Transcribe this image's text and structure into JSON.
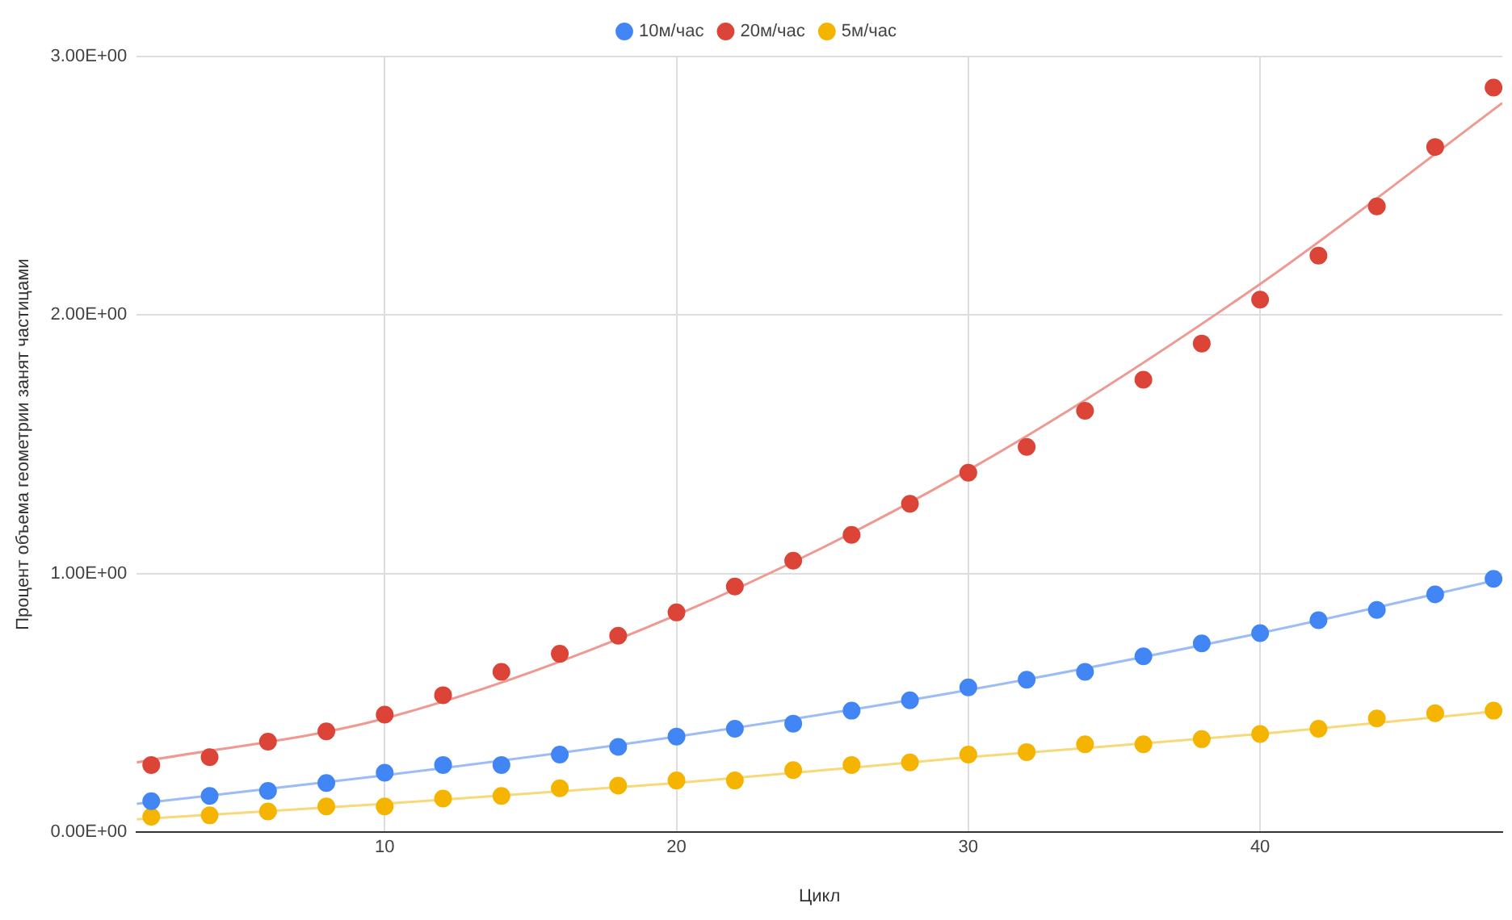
{
  "chart_data": {
    "type": "scatter",
    "xlabel": "Цикл",
    "ylabel": "Процент объема геометрии занят частицами",
    "x": [
      2,
      4,
      6,
      8,
      10,
      12,
      14,
      16,
      18,
      20,
      22,
      24,
      26,
      28,
      30,
      32,
      34,
      36,
      38,
      40,
      42,
      44,
      46,
      48
    ],
    "series": [
      {
        "name": "10м/час",
        "color": "#4285f4",
        "values": [
          0.12,
          0.14,
          0.16,
          0.19,
          0.23,
          0.26,
          0.26,
          0.3,
          0.33,
          0.37,
          0.4,
          0.42,
          0.47,
          0.51,
          0.56,
          0.59,
          0.62,
          0.68,
          0.73,
          0.77,
          0.82,
          0.86,
          0.92,
          0.98
        ]
      },
      {
        "name": "20м/час",
        "color": "#db4437",
        "values": [
          0.26,
          0.29,
          0.35,
          0.39,
          0.455,
          0.53,
          0.62,
          0.69,
          0.76,
          0.85,
          0.95,
          1.05,
          1.15,
          1.27,
          1.39,
          1.49,
          1.63,
          1.75,
          1.89,
          2.06,
          2.23,
          2.42,
          2.65,
          2.88
        ]
      },
      {
        "name": "5м/час",
        "color": "#f4b400",
        "values": [
          0.06,
          0.065,
          0.08,
          0.1,
          0.1,
          0.13,
          0.14,
          0.17,
          0.18,
          0.2,
          0.2,
          0.24,
          0.26,
          0.27,
          0.3,
          0.31,
          0.34,
          0.34,
          0.36,
          0.38,
          0.4,
          0.44,
          0.46,
          0.47
        ]
      },
      {
        "type": "line",
        "marker": "none",
        "color": "#9bbcf7",
        "x": [
          1.5,
          10,
          20,
          30,
          40,
          48.3
        ],
        "values": [
          0.11,
          0.22,
          0.37,
          0.55,
          0.77,
          0.98
        ]
      },
      {
        "type": "line",
        "marker": "none",
        "color": "#ee9a92",
        "x": [
          1.5,
          10,
          20,
          30,
          40,
          48.3
        ],
        "values": [
          0.27,
          0.44,
          0.84,
          1.4,
          2.12,
          2.82
        ]
      },
      {
        "type": "line",
        "marker": "none",
        "color": "#f7d97a",
        "x": [
          1.5,
          10,
          20,
          30,
          40,
          48.3
        ],
        "values": [
          0.05,
          0.11,
          0.19,
          0.29,
          0.38,
          0.47
        ]
      }
    ],
    "xlim": [
      1.5,
      48.3
    ],
    "xticks": [
      10,
      20,
      30,
      40
    ],
    "ylim": [
      0,
      3
    ],
    "yticks": [
      {
        "value": 0,
        "label": "0.00E+00"
      },
      {
        "value": 1,
        "label": "1.00E+00"
      },
      {
        "value": 2,
        "label": "2.00E+00"
      },
      {
        "value": 3,
        "label": "3.00E+00"
      }
    ],
    "grid": true,
    "legend": "top",
    "marker": "circle"
  }
}
